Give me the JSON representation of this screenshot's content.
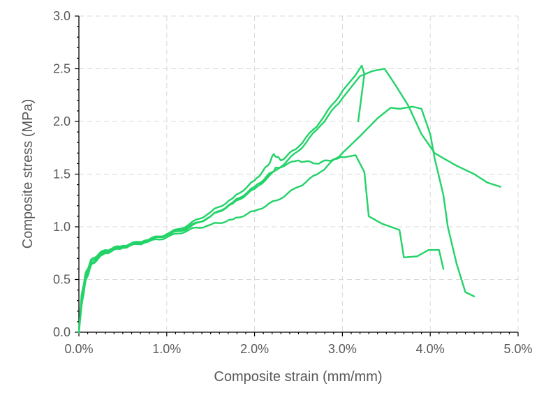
{
  "chart_data": {
    "type": "line",
    "title": "",
    "xlabel": "Composite strain (mm/mm)",
    "ylabel": "Composite stress (MPa)",
    "xlim": [
      0,
      0.05
    ],
    "ylim": [
      0,
      3.0
    ],
    "x_ticks": [
      0,
      0.01,
      0.02,
      0.03,
      0.04,
      0.05
    ],
    "x_tick_labels": [
      "0.0%",
      "1.0%",
      "2.0%",
      "3.0%",
      "4.0%",
      "5.0%"
    ],
    "y_ticks": [
      0,
      0.5,
      1.0,
      1.5,
      2.0,
      2.5,
      3.0
    ],
    "y_tick_labels": [
      "0.0",
      "0.5",
      "1.0",
      "1.5",
      "2.0",
      "2.5",
      "3.0"
    ],
    "grid": true,
    "line_color": "#22d368",
    "series": [
      {
        "points": [
          [
            0,
            0
          ],
          [
            0.0003,
            0.3
          ],
          [
            0.0008,
            0.55
          ],
          [
            0.0015,
            0.68
          ],
          [
            0.003,
            0.77
          ],
          [
            0.005,
            0.81
          ],
          [
            0.0075,
            0.86
          ],
          [
            0.01,
            0.92
          ],
          [
            0.0125,
            0.99
          ],
          [
            0.015,
            1.1
          ],
          [
            0.0175,
            1.23
          ],
          [
            0.02,
            1.38
          ],
          [
            0.022,
            1.52
          ],
          [
            0.0225,
            1.56
          ],
          [
            0.025,
            1.63
          ],
          [
            0.027,
            1.6
          ],
          [
            0.029,
            1.64
          ],
          [
            0.0315,
            1.68
          ],
          [
            0.0325,
            1.52
          ],
          [
            0.033,
            1.1
          ],
          [
            0.0345,
            1.03
          ],
          [
            0.0365,
            0.97
          ],
          [
            0.037,
            0.71
          ],
          [
            0.0385,
            0.72
          ],
          [
            0.0398,
            0.78
          ],
          [
            0.041,
            0.78
          ],
          [
            0.0415,
            0.6
          ]
        ]
      },
      {
        "points": [
          [
            0,
            0
          ],
          [
            0.0003,
            0.35
          ],
          [
            0.0008,
            0.57
          ],
          [
            0.0015,
            0.7
          ],
          [
            0.003,
            0.78
          ],
          [
            0.005,
            0.82
          ],
          [
            0.0075,
            0.87
          ],
          [
            0.01,
            0.93
          ],
          [
            0.0125,
            1.02
          ],
          [
            0.015,
            1.14
          ],
          [
            0.0175,
            1.27
          ],
          [
            0.02,
            1.44
          ],
          [
            0.0215,
            1.58
          ],
          [
            0.0222,
            1.69
          ],
          [
            0.023,
            1.63
          ],
          [
            0.025,
            1.76
          ],
          [
            0.0275,
            2.0
          ],
          [
            0.03,
            2.29
          ],
          [
            0.0315,
            2.44
          ],
          [
            0.0322,
            2.53
          ],
          [
            0.0325,
            2.45
          ],
          [
            0.0318,
            2.0
          ]
        ]
      },
      {
        "points": [
          [
            0,
            0
          ],
          [
            0.0003,
            0.3
          ],
          [
            0.0008,
            0.52
          ],
          [
            0.0015,
            0.66
          ],
          [
            0.003,
            0.76
          ],
          [
            0.005,
            0.8
          ],
          [
            0.0075,
            0.86
          ],
          [
            0.01,
            0.93
          ],
          [
            0.0125,
            1.0
          ],
          [
            0.015,
            1.1
          ],
          [
            0.0175,
            1.22
          ],
          [
            0.02,
            1.36
          ],
          [
            0.0225,
            1.54
          ],
          [
            0.025,
            1.72
          ],
          [
            0.0275,
            1.96
          ],
          [
            0.03,
            2.22
          ],
          [
            0.032,
            2.43
          ],
          [
            0.0335,
            2.48
          ],
          [
            0.0348,
            2.5
          ],
          [
            0.036,
            2.35
          ],
          [
            0.0375,
            2.15
          ],
          [
            0.039,
            1.88
          ],
          [
            0.0405,
            1.7
          ],
          [
            0.0415,
            1.65
          ],
          [
            0.043,
            1.58
          ],
          [
            0.045,
            1.5
          ],
          [
            0.0465,
            1.42
          ],
          [
            0.048,
            1.38
          ]
        ]
      },
      {
        "points": [
          [
            0,
            0
          ],
          [
            0.0003,
            0.25
          ],
          [
            0.0008,
            0.5
          ],
          [
            0.0015,
            0.65
          ],
          [
            0.003,
            0.75
          ],
          [
            0.005,
            0.8
          ],
          [
            0.0075,
            0.85
          ],
          [
            0.01,
            0.9
          ],
          [
            0.0125,
            0.97
          ],
          [
            0.015,
            1.02
          ],
          [
            0.0175,
            1.07
          ],
          [
            0.02,
            1.15
          ],
          [
            0.0225,
            1.25
          ],
          [
            0.025,
            1.38
          ],
          [
            0.0275,
            1.52
          ],
          [
            0.03,
            1.7
          ],
          [
            0.032,
            1.86
          ],
          [
            0.034,
            2.03
          ],
          [
            0.0355,
            2.13
          ],
          [
            0.0365,
            2.12
          ],
          [
            0.038,
            2.14
          ],
          [
            0.039,
            2.12
          ],
          [
            0.04,
            1.88
          ],
          [
            0.0405,
            1.65
          ],
          [
            0.0415,
            1.3
          ],
          [
            0.042,
            1.0
          ],
          [
            0.043,
            0.65
          ],
          [
            0.044,
            0.38
          ],
          [
            0.045,
            0.34
          ]
        ]
      }
    ]
  }
}
